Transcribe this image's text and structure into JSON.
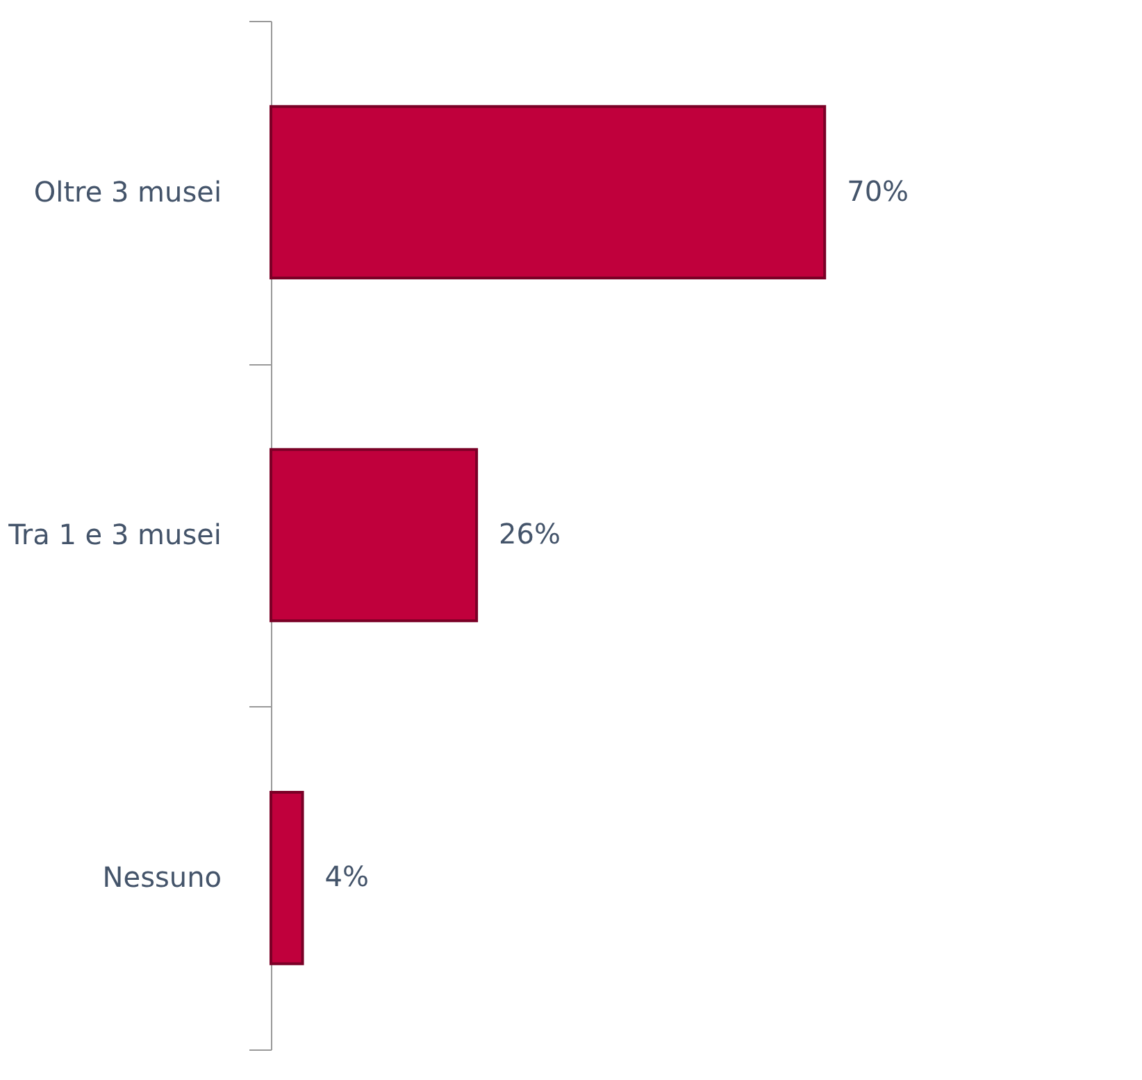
{
  "chart_data": {
    "type": "bar",
    "orientation": "horizontal",
    "categories": [
      "Oltre 3 musei",
      "Tra 1 e 3 musei",
      "Nessuno"
    ],
    "values": [
      70,
      26,
      4
    ],
    "color": "#c0003c",
    "value_labels": [
      "70%",
      "26%",
      "4%"
    ]
  }
}
